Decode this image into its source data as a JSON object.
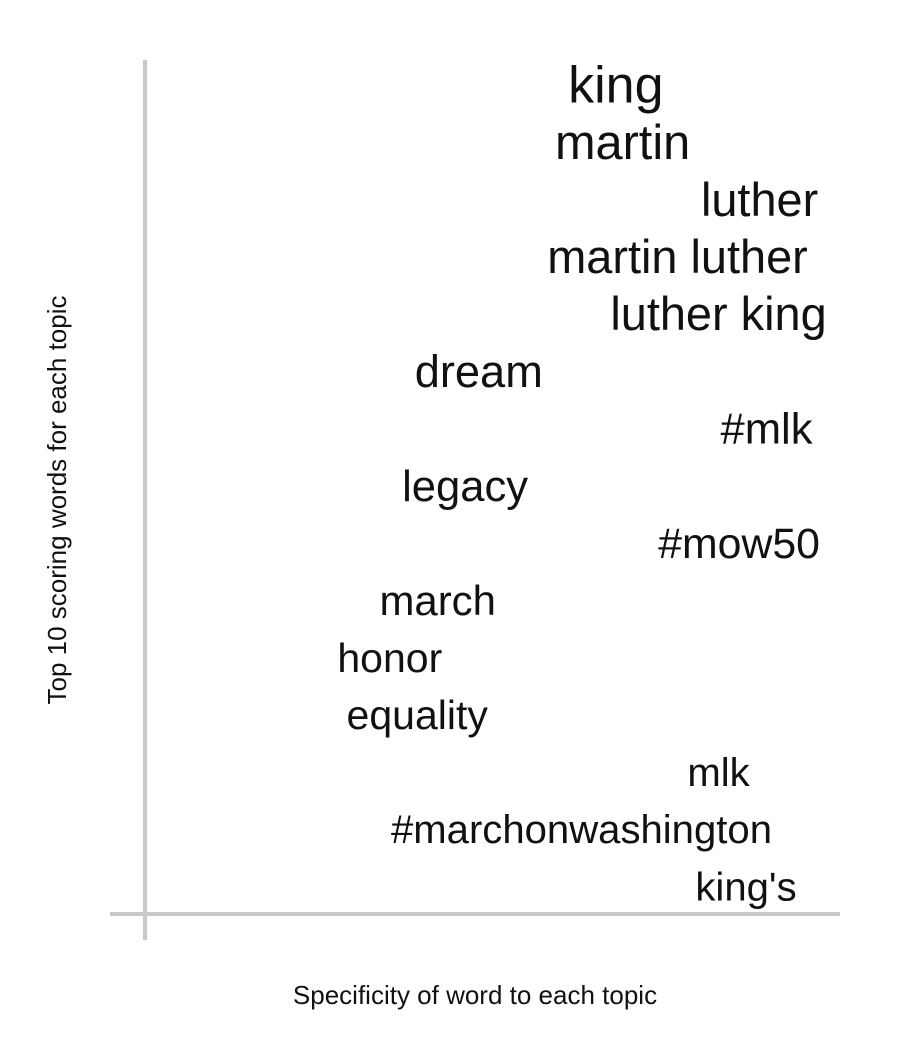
{
  "chart_data": {
    "type": "scatter",
    "xlabel": "Specificity of word to each topic",
    "ylabel": "Top 10 scoring words for each topic",
    "points": [
      {
        "word": "king",
        "rank": 1,
        "specificity": 0.68,
        "weight": 1.0
      },
      {
        "word": "martin",
        "rank": 2,
        "specificity": 0.69,
        "weight": 0.85
      },
      {
        "word": "luther",
        "rank": 3,
        "specificity": 0.89,
        "weight": 0.77
      },
      {
        "word": "martin luther",
        "rank": 4,
        "specificity": 0.77,
        "weight": 0.77
      },
      {
        "word": "luther king",
        "rank": 5,
        "specificity": 0.83,
        "weight": 0.77
      },
      {
        "word": "dream",
        "rank": 6,
        "specificity": 0.48,
        "weight": 0.69
      },
      {
        "word": "#mlk",
        "rank": 7,
        "specificity": 0.9,
        "weight": 0.62
      },
      {
        "word": "legacy",
        "rank": 8,
        "specificity": 0.46,
        "weight": 0.62
      },
      {
        "word": "#mow50",
        "rank": 9,
        "specificity": 0.86,
        "weight": 0.58
      },
      {
        "word": "march",
        "rank": 10,
        "specificity": 0.42,
        "weight": 0.54
      },
      {
        "word": "honor",
        "rank": 11,
        "specificity": 0.35,
        "weight": 0.5
      },
      {
        "word": "equality",
        "rank": 12,
        "specificity": 0.39,
        "weight": 0.5
      },
      {
        "word": "mlk",
        "rank": 13,
        "specificity": 0.83,
        "weight": 0.46
      },
      {
        "word": "#marchonwashington",
        "rank": 14,
        "specificity": 0.63,
        "weight": 0.46
      },
      {
        "word": "king's",
        "rank": 15,
        "specificity": 0.87,
        "weight": 0.46
      }
    ],
    "colors": {
      "text": "#111111",
      "axis": "#c8c8c8"
    }
  }
}
